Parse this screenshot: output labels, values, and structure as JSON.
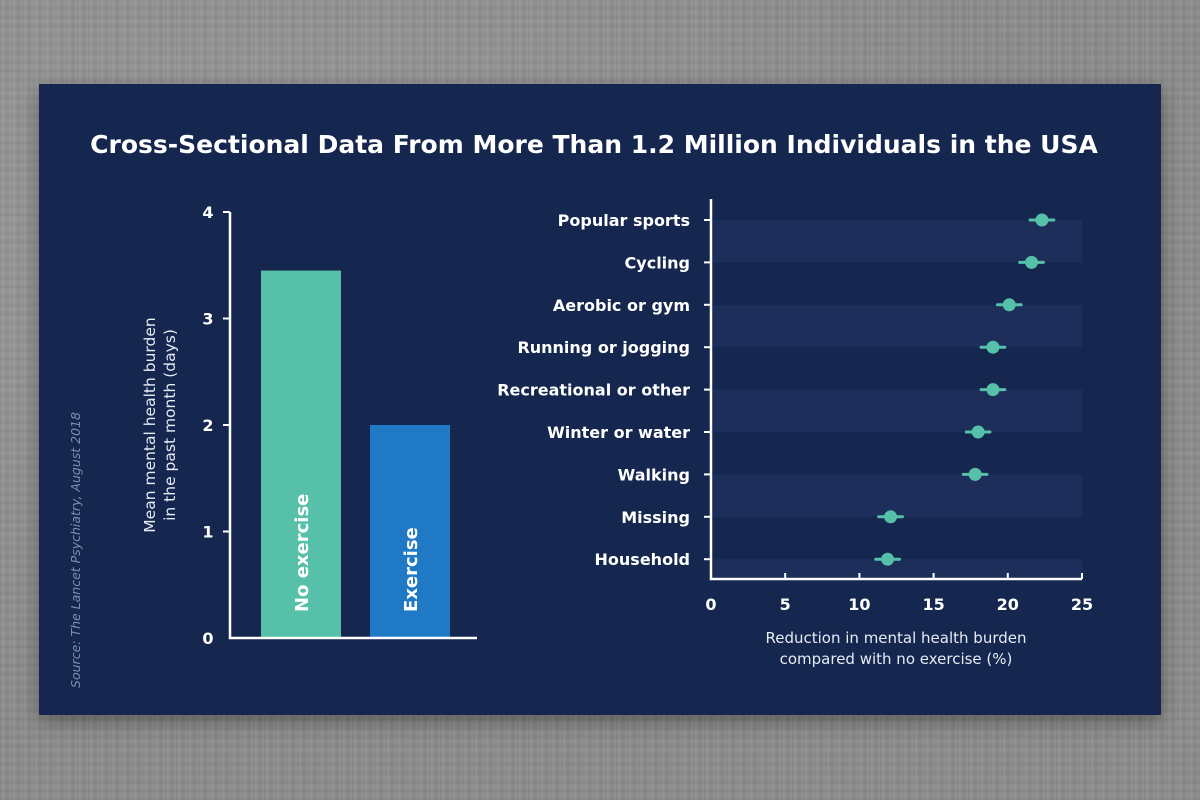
{
  "title": "Cross-Sectional Data From More Than 1.2 Million Individuals in the USA",
  "source": "Source: The Lancet Psychiatry, August 2018",
  "colors": {
    "background": "#15264f",
    "band": "#1d2e5a",
    "axis": "#ffffff",
    "no_exercise": "#56c1a8",
    "exercise": "#2079c4",
    "point": "#56c1a8"
  },
  "chart_data": [
    {
      "type": "bar",
      "title": "",
      "categories": [
        "No exercise",
        "Exercise"
      ],
      "values": [
        3.45,
        2.0
      ],
      "ylabel": "Mean mental health burden in the past month (days)",
      "ylabel_lines": [
        "Mean mental health burden",
        "in the past month (days)"
      ],
      "xlabel": "",
      "ylim": [
        0,
        4
      ],
      "yticks": [
        0,
        1,
        2,
        3,
        4
      ],
      "bar_labels_inside": true,
      "grid": false
    },
    {
      "type": "scatter",
      "subtype": "dot-plot with error bars",
      "categories": [
        "Popular sports",
        "Cycling",
        "Aerobic or gym",
        "Running or jogging",
        "Recreational or other",
        "Winter or water",
        "Walking",
        "Missing",
        "Household"
      ],
      "values": [
        22.3,
        21.6,
        20.1,
        19.0,
        19.0,
        18.0,
        17.8,
        12.1,
        11.9
      ],
      "error_low": [
        21.5,
        20.8,
        19.3,
        18.2,
        18.2,
        17.2,
        17.0,
        11.3,
        11.1
      ],
      "error_high": [
        23.1,
        22.4,
        20.9,
        19.8,
        19.8,
        18.8,
        18.6,
        12.9,
        12.7
      ],
      "xlabel": "Reduction in mental health burden compared with no exercise (%)",
      "xlabel_lines": [
        "Reduction in mental health burden",
        "compared with no exercise (%)"
      ],
      "ylabel": "",
      "xlim": [
        0,
        25
      ],
      "xticks": [
        0,
        5,
        10,
        15,
        20,
        25
      ],
      "alternating_bands": true,
      "grid": false
    }
  ]
}
